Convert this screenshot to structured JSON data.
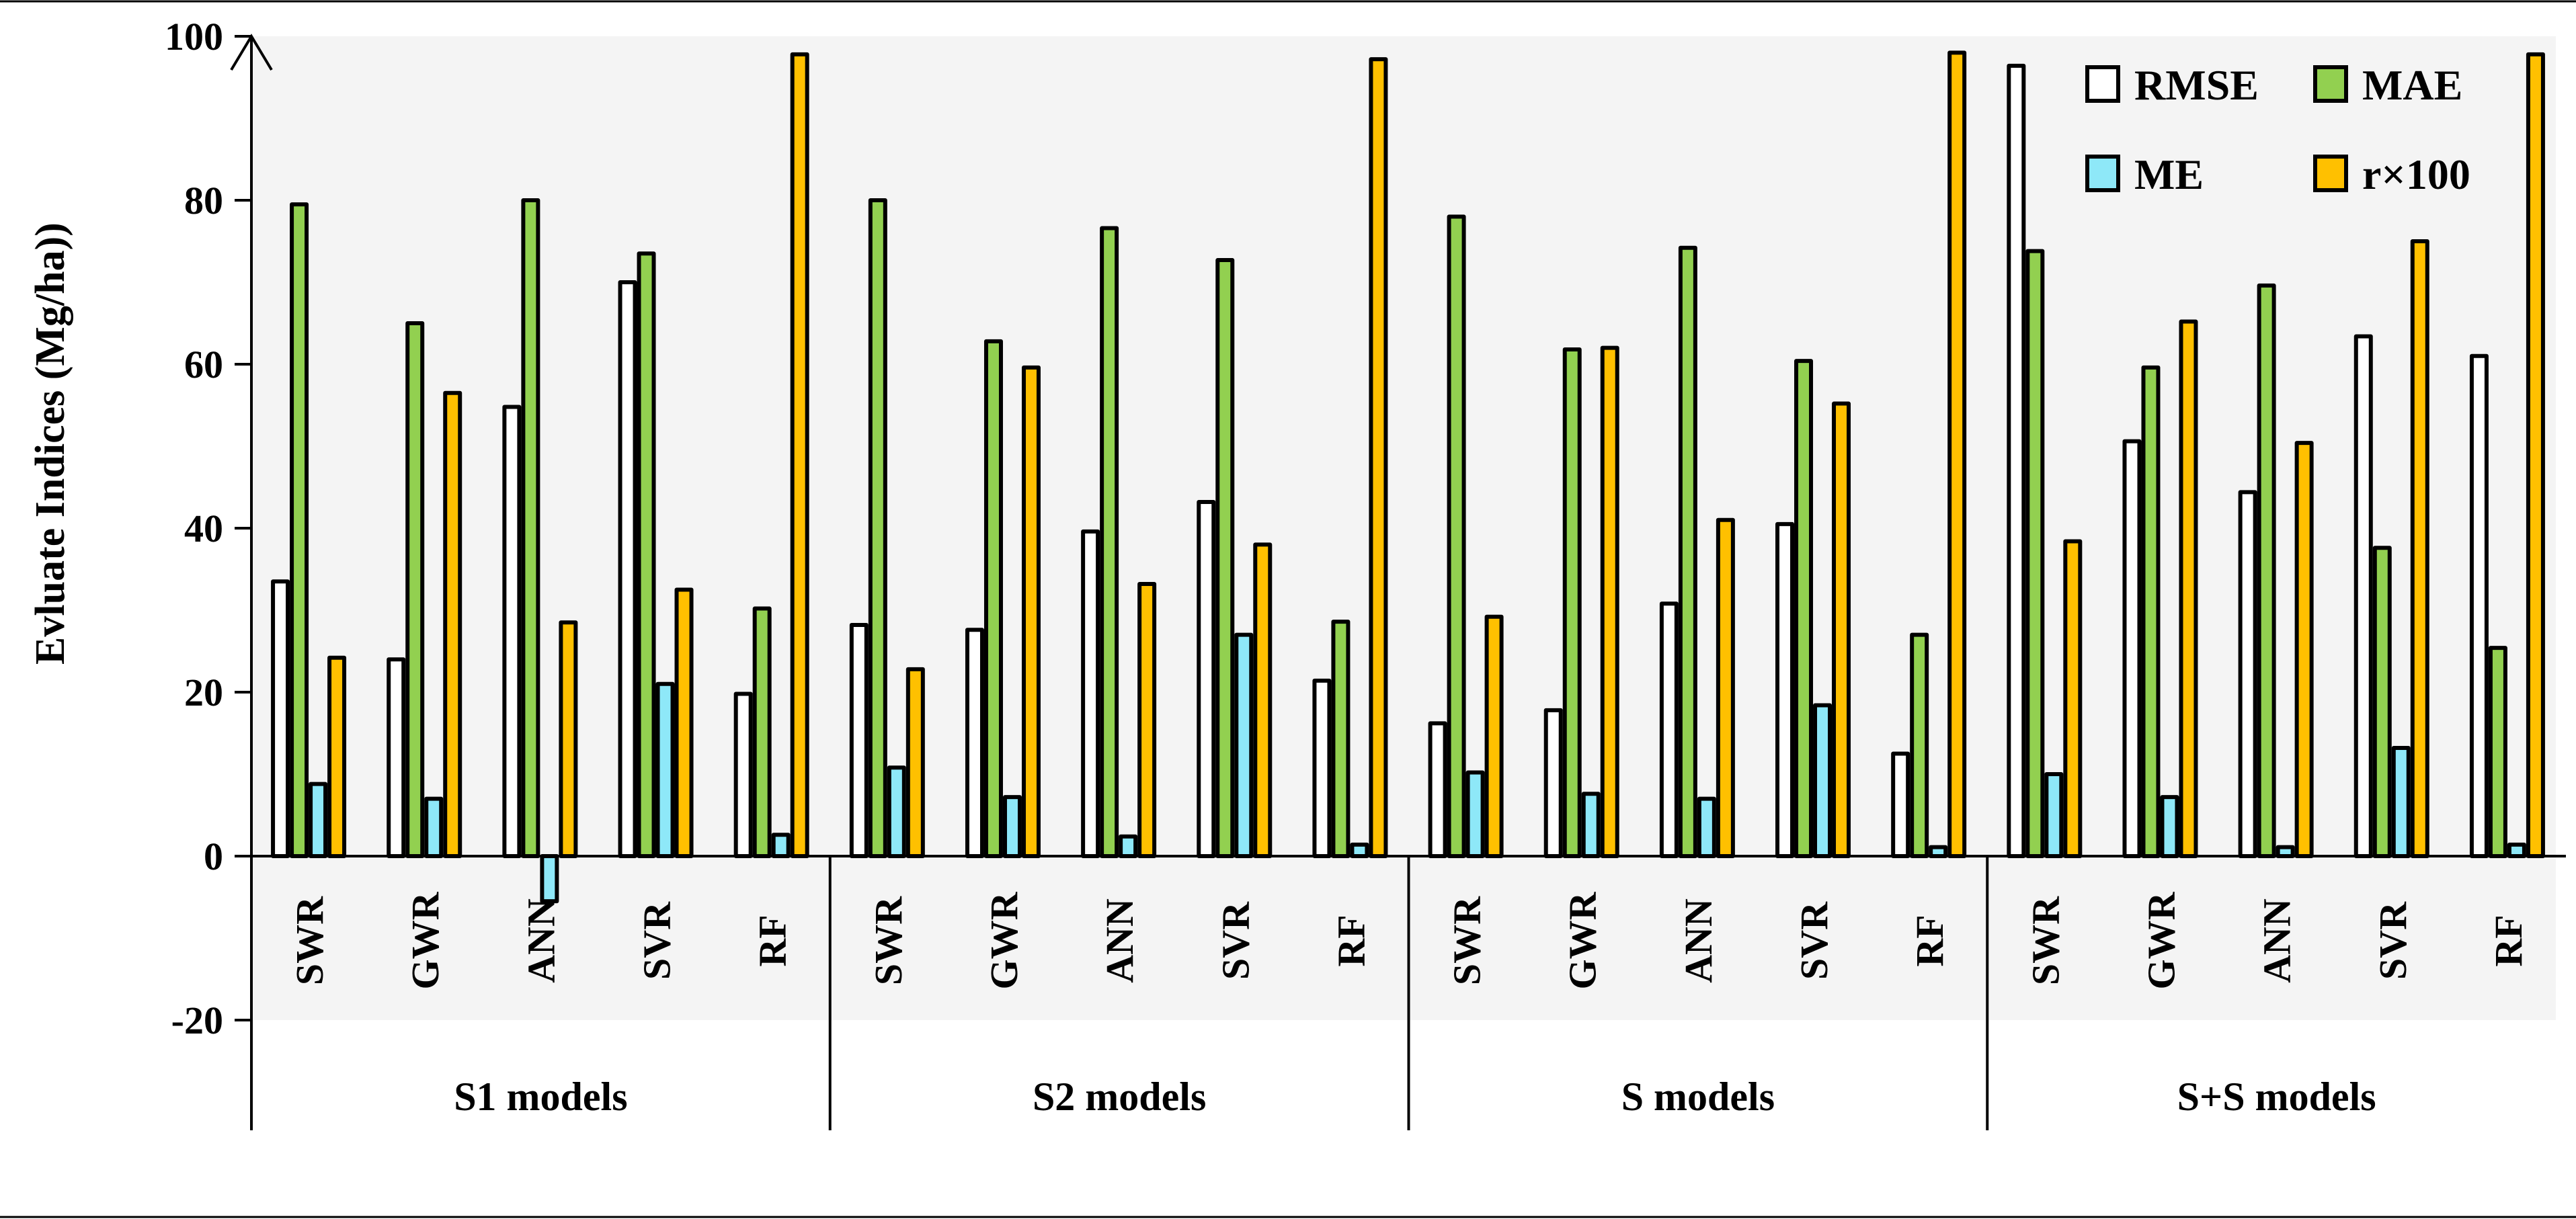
{
  "chart_data": {
    "type": "bar",
    "title": "",
    "xlabel": "",
    "ylabel": "Evluate Indices (Mg/ha))",
    "ylim": [
      -20,
      100
    ],
    "yticks": [
      -20,
      0,
      20,
      40,
      60,
      80,
      100
    ],
    "grid": false,
    "legend_position": "top-right",
    "background_color": "#f4f4f4",
    "groups": [
      {
        "label": "S1 models",
        "categories": [
          "SWR",
          "GWR",
          "ANN",
          "SVR",
          "RF"
        ]
      },
      {
        "label": "S2 models",
        "categories": [
          "SWR",
          "GWR",
          "ANN",
          "SVR",
          "RF"
        ]
      },
      {
        "label": "S models",
        "categories": [
          "SWR",
          "GWR",
          "ANN",
          "SVR",
          "RF"
        ]
      },
      {
        "label": "S+S models",
        "categories": [
          "SWR",
          "GWR",
          "ANN",
          "SVR",
          "RF"
        ]
      }
    ],
    "series": [
      {
        "name": "RMSE",
        "color": "#ffffff",
        "values": [
          33.5,
          24.0,
          54.8,
          70.0,
          19.8,
          28.2,
          27.6,
          39.6,
          43.2,
          21.4,
          16.2,
          17.8,
          30.8,
          40.5,
          12.5,
          96.4,
          50.6,
          44.4,
          63.4,
          61.0
        ]
      },
      {
        "name": "MAE",
        "color": "#92d050",
        "values": [
          79.5,
          65.0,
          80.0,
          73.5,
          30.2,
          80.0,
          62.8,
          76.6,
          72.7,
          28.6,
          78.0,
          61.8,
          74.2,
          60.4,
          27.0,
          73.8,
          59.6,
          69.6,
          37.6,
          25.4
        ]
      },
      {
        "name": "ME",
        "color": "#8ee8f8",
        "values": [
          8.8,
          7.0,
          -5.5,
          21.0,
          2.6,
          10.8,
          7.2,
          2.4,
          27.0,
          1.4,
          10.2,
          7.6,
          7.0,
          18.4,
          1.1,
          10.0,
          7.2,
          1.1,
          13.2,
          1.4
        ]
      },
      {
        "name": "r×100",
        "color": "#ffc000",
        "values": [
          24.2,
          56.5,
          28.5,
          32.5,
          97.8,
          22.8,
          59.6,
          33.2,
          38.0,
          97.2,
          29.2,
          62.0,
          41.0,
          55.2,
          98.0,
          38.4,
          65.2,
          50.4,
          75.0,
          97.8
        ]
      }
    ]
  }
}
